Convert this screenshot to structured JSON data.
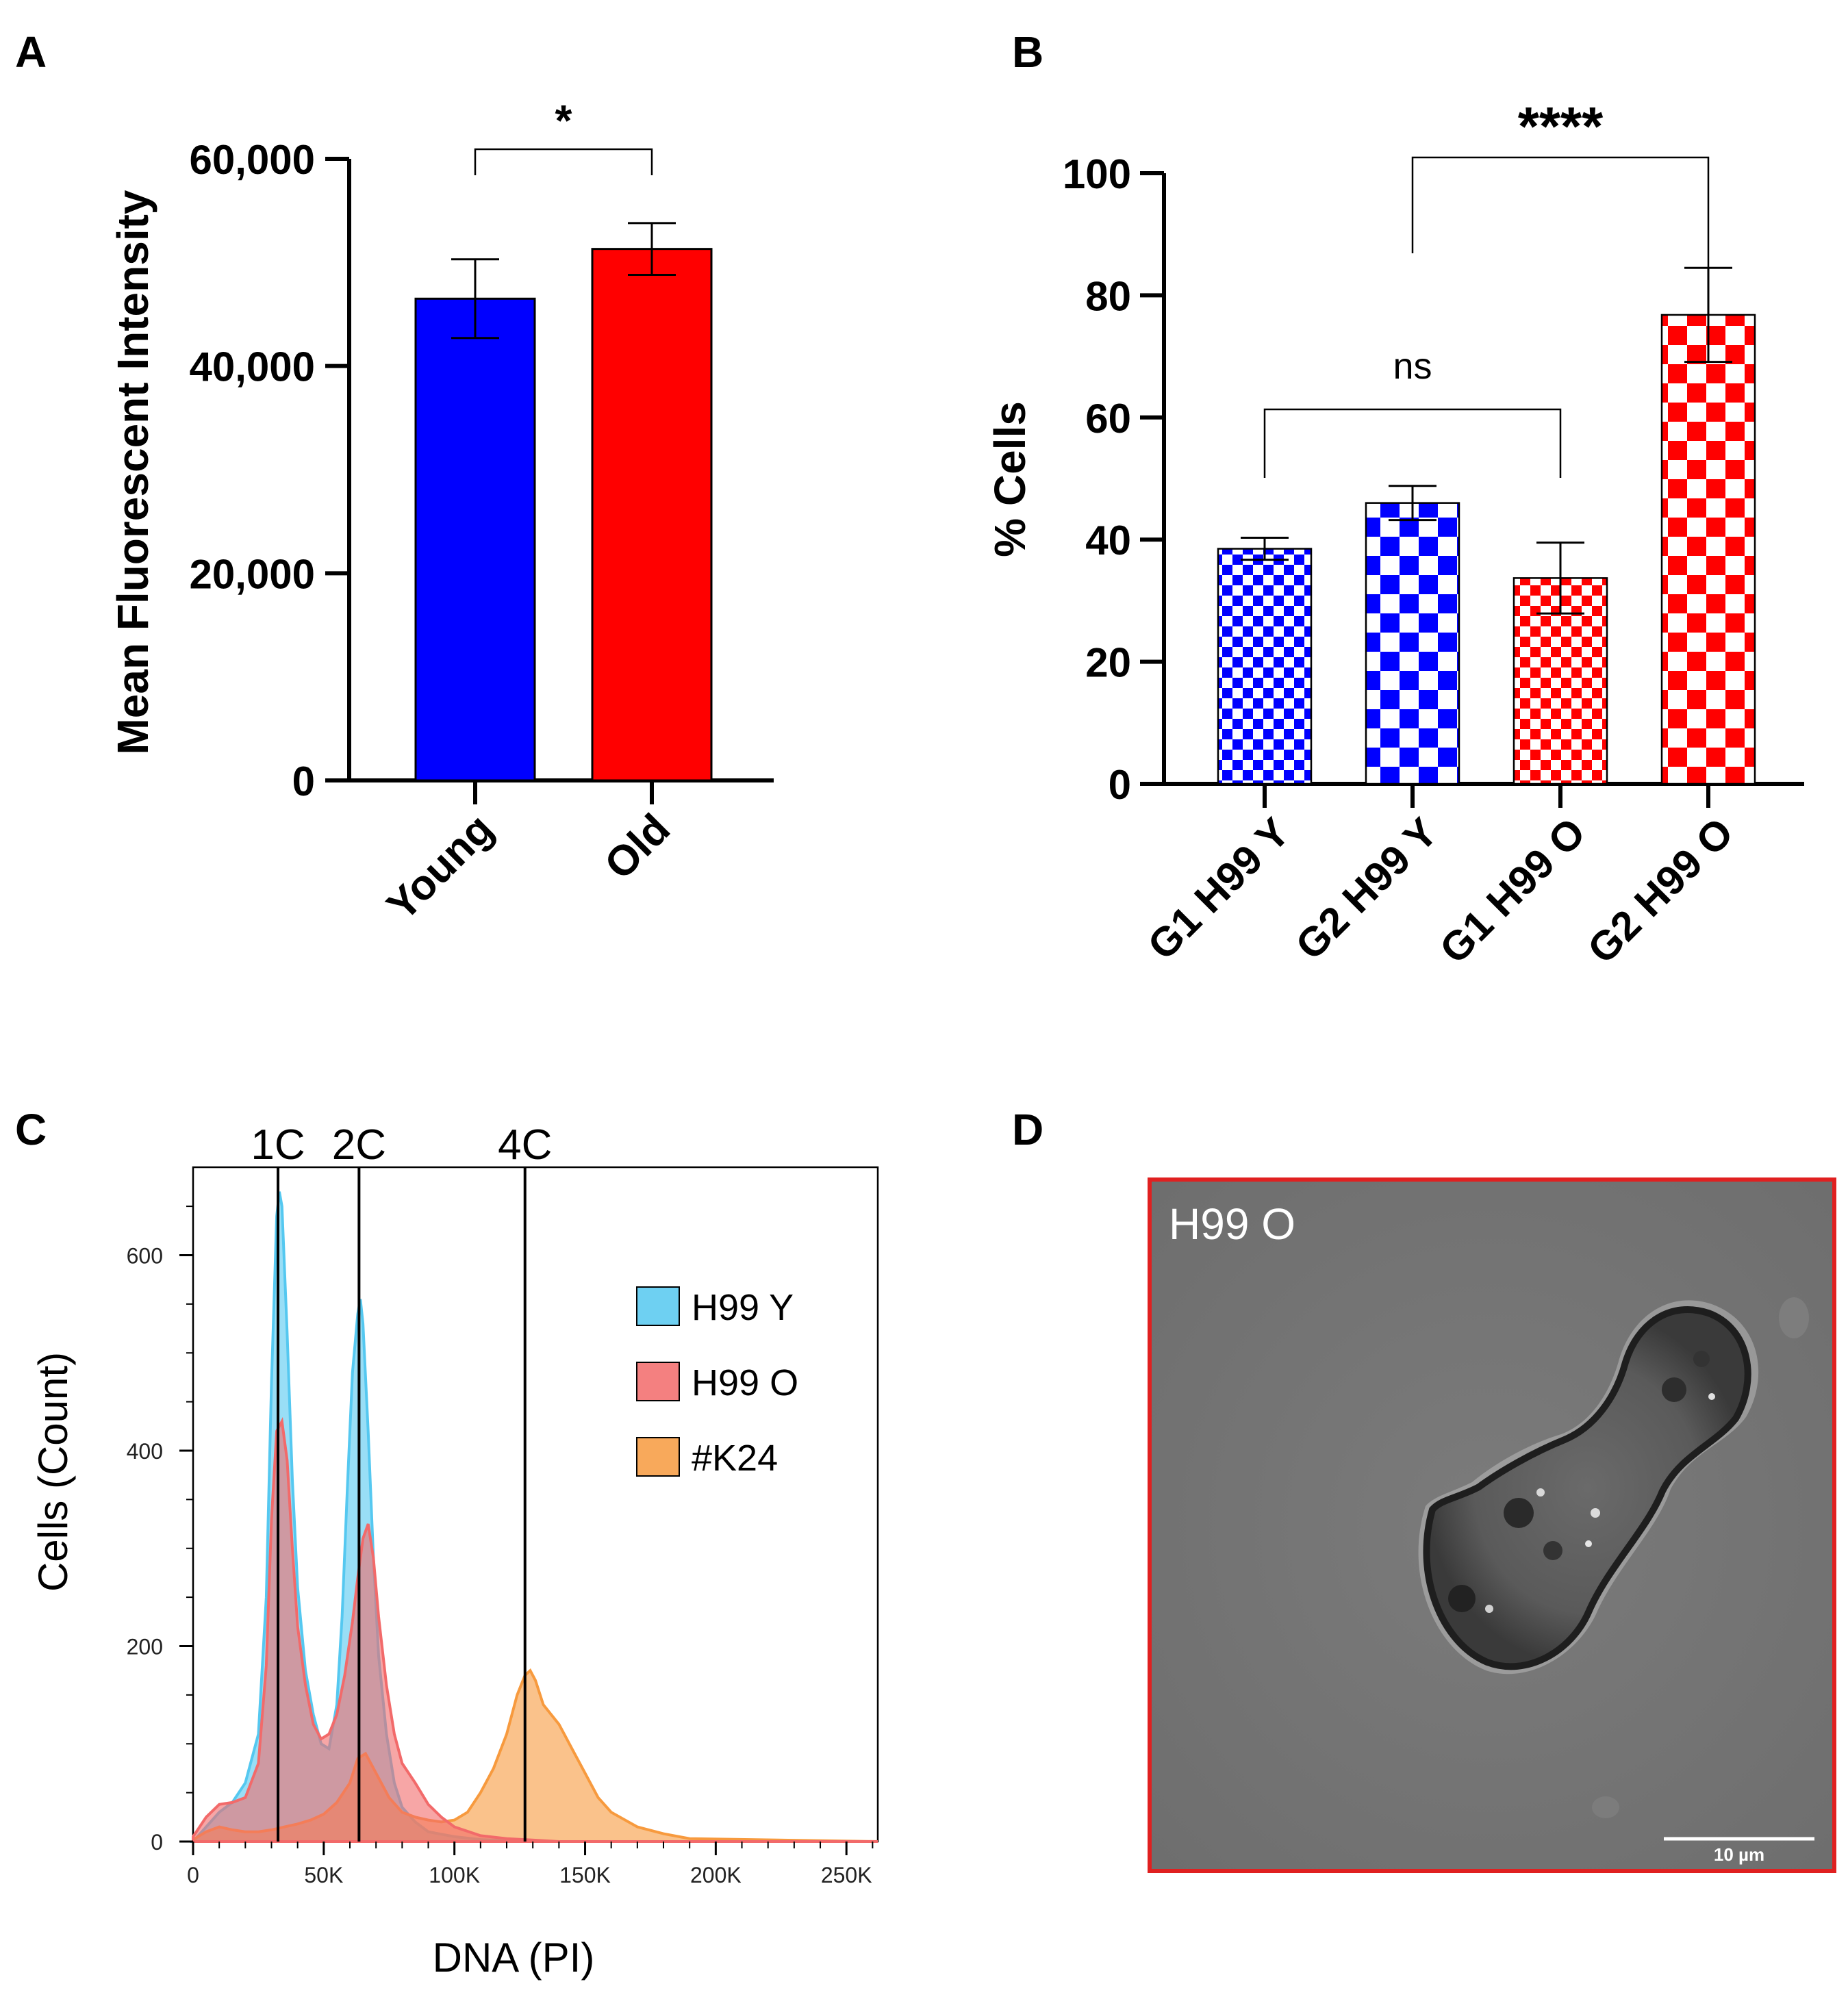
{
  "panels": {
    "A": "A",
    "B": "B",
    "C": "C",
    "D": "D"
  },
  "chart_data": [
    {
      "panel": "A",
      "type": "bar",
      "ylabel": "Mean Fluorescent Intensity",
      "xlabel": "",
      "ylim": [
        0,
        60000
      ],
      "yticks": [
        0,
        20000,
        40000,
        60000
      ],
      "ytick_labels": [
        "0",
        "20,000",
        "40,000",
        "60,000"
      ],
      "categories": [
        "Young",
        "Old"
      ],
      "values": [
        46500,
        51300
      ],
      "errors": [
        3800,
        2500
      ],
      "colors": [
        "#0000ff",
        "#ff0000"
      ],
      "annotations": [
        {
          "between": [
            "Young",
            "Old"
          ],
          "text": "*"
        }
      ]
    },
    {
      "panel": "B",
      "type": "bar",
      "ylabel": "% Cells",
      "xlabel": "",
      "ylim": [
        0,
        100
      ],
      "yticks": [
        0,
        20,
        40,
        60,
        80,
        100
      ],
      "ytick_labels": [
        "0",
        "20",
        "40",
        "60",
        "80",
        "100"
      ],
      "categories": [
        "G1 H99 Y",
        "G2 H99 Y",
        "G1 H99 O",
        "G2 H99 O"
      ],
      "values": [
        38.5,
        46,
        33.7,
        76.8
      ],
      "errors": [
        1.8,
        2.8,
        5.8,
        7.7
      ],
      "colors": [
        "#0000ff",
        "#0000ff",
        "#ff0000",
        "#ff0000"
      ],
      "checker": [
        "fine",
        "coarse",
        "fine",
        "coarse"
      ],
      "annotations": [
        {
          "between": [
            "G1 H99 Y",
            "G1 H99 O"
          ],
          "text": "ns"
        },
        {
          "between": [
            "G2 H99 Y",
            "G2 H99 O"
          ],
          "text": "****"
        }
      ]
    },
    {
      "panel": "C",
      "type": "area",
      "xlabel": "DNA (PI)",
      "ylabel": "Cells (Count)",
      "xlim": [
        0,
        262000
      ],
      "ylim": [
        0,
        690
      ],
      "xticks": [
        0,
        50000,
        100000,
        150000,
        200000,
        250000
      ],
      "xtick_labels": [
        "0",
        "50K",
        "100K",
        "150K",
        "200K",
        "250K"
      ],
      "yticks": [
        0,
        200,
        400,
        600
      ],
      "ytick_labels": [
        "0",
        "200",
        "400",
        "600"
      ],
      "markers": [
        {
          "label": "1C",
          "x": 32500
        },
        {
          "label": "2C",
          "x": 63500
        },
        {
          "label": "4C",
          "x": 127000
        }
      ],
      "series": [
        {
          "name": "H99 Y",
          "color": "#55c8f0",
          "x": [
            0,
            5000,
            10000,
            15000,
            20000,
            25000,
            28000,
            30000,
            32000,
            33000,
            34000,
            36000,
            38000,
            40000,
            43000,
            46000,
            49000,
            52000,
            55000,
            57000,
            59000,
            61000,
            63000,
            64000,
            65000,
            67000,
            69000,
            71000,
            74000,
            77000,
            80000,
            85000,
            90000,
            100000,
            110000,
            130000,
            262000
          ],
          "y": [
            0,
            15,
            30,
            40,
            60,
            110,
            250,
            470,
            640,
            665,
            650,
            520,
            370,
            260,
            175,
            130,
            100,
            95,
            140,
            230,
            360,
            480,
            540,
            555,
            530,
            420,
            290,
            190,
            110,
            60,
            35,
            20,
            10,
            5,
            2,
            0,
            0
          ]
        },
        {
          "name": "H99 O",
          "color": "#f26a6a",
          "x": [
            0,
            5000,
            10000,
            15000,
            20000,
            25000,
            28000,
            30000,
            32000,
            34000,
            36000,
            38000,
            40000,
            43000,
            46000,
            49000,
            52000,
            55000,
            58000,
            61000,
            63000,
            65000,
            67000,
            69000,
            71000,
            74000,
            77000,
            80000,
            85000,
            90000,
            95000,
            100000,
            110000,
            120000,
            140000,
            262000
          ],
          "y": [
            5,
            25,
            38,
            40,
            45,
            80,
            180,
            330,
            420,
            430,
            390,
            300,
            220,
            160,
            120,
            105,
            110,
            130,
            170,
            225,
            270,
            310,
            325,
            290,
            230,
            160,
            110,
            80,
            60,
            38,
            25,
            15,
            6,
            3,
            0,
            0
          ]
        },
        {
          "name": "#K24",
          "color": "#f79a3e",
          "x": [
            0,
            5000,
            10000,
            15000,
            20000,
            25000,
            30000,
            35000,
            40000,
            45000,
            50000,
            55000,
            60000,
            63000,
            66000,
            70000,
            75000,
            80000,
            85000,
            90000,
            95000,
            100000,
            105000,
            110000,
            115000,
            120000,
            124000,
            127000,
            129000,
            131000,
            134000,
            137000,
            140000,
            145000,
            150000,
            155000,
            160000,
            170000,
            180000,
            190000,
            262000
          ],
          "y": [
            2,
            10,
            15,
            12,
            10,
            10,
            12,
            15,
            18,
            22,
            28,
            40,
            60,
            85,
            90,
            70,
            45,
            30,
            25,
            22,
            20,
            22,
            30,
            50,
            75,
            110,
            150,
            170,
            175,
            165,
            140,
            130,
            120,
            95,
            70,
            45,
            30,
            15,
            8,
            3,
            0
          ]
        }
      ]
    }
  ],
  "micrograph": {
    "label": "H99 O",
    "scale_bar": "10 µm",
    "border_color": "#e02020"
  }
}
